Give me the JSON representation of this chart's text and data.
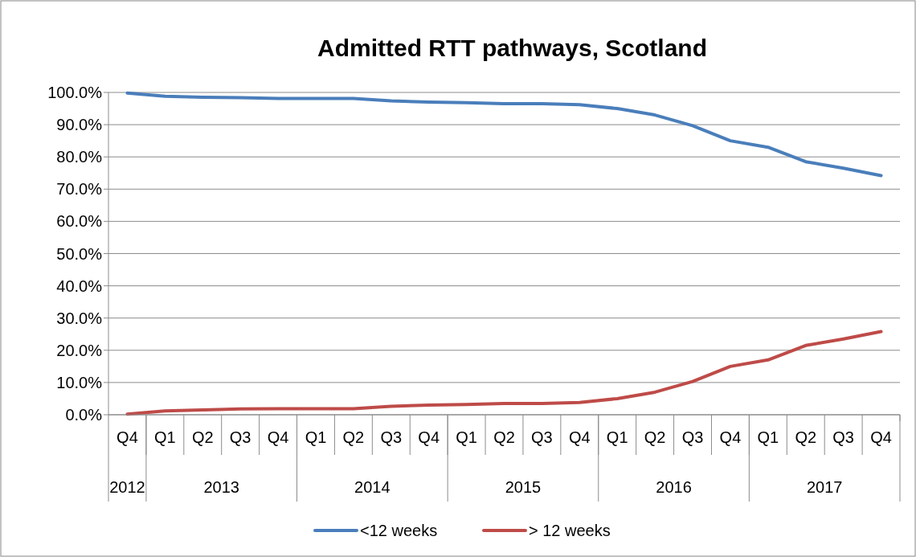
{
  "chart_data": {
    "type": "line",
    "title": "Admitted RTT pathways, Scotland",
    "categories": [
      "Q4",
      "Q1",
      "Q2",
      "Q3",
      "Q4",
      "Q1",
      "Q2",
      "Q3",
      "Q4",
      "Q1",
      "Q2",
      "Q3",
      "Q4",
      "Q1",
      "Q2",
      "Q3",
      "Q4",
      "Q1",
      "Q2",
      "Q3",
      "Q4"
    ],
    "series": [
      {
        "name": "<12 weeks",
        "color": "#4a7ebb",
        "values": [
          99.8,
          98.8,
          98.5,
          98.4,
          98.1,
          98.1,
          98.1,
          97.4,
          97.0,
          96.8,
          96.5,
          96.5,
          96.2,
          95.0,
          93.0,
          89.7,
          85.0,
          83.0,
          78.5,
          76.5,
          74.2
        ]
      },
      {
        "name": "> 12 weeks",
        "color": "#be4b48",
        "values": [
          0.2,
          1.2,
          1.5,
          1.8,
          1.9,
          1.9,
          1.9,
          2.6,
          3.0,
          3.2,
          3.5,
          3.5,
          3.8,
          5.0,
          7.0,
          10.3,
          15.0,
          17.0,
          21.5,
          23.5,
          25.8
        ]
      }
    ],
    "annotations": [
      "2012",
      "2013",
      "2014",
      "2015",
      "2016",
      "2017"
    ],
    "ylim": [
      0,
      100
    ],
    "yticks": [
      {
        "value": 0,
        "label": "0.0%"
      },
      {
        "value": 10,
        "label": "10.0%"
      },
      {
        "value": 20,
        "label": "20.0%"
      },
      {
        "value": 30,
        "label": "30.0%"
      },
      {
        "value": 40,
        "label": "40.0%"
      },
      {
        "value": 50,
        "label": "50.0%"
      },
      {
        "value": 60,
        "label": "60.0%"
      },
      {
        "value": 70,
        "label": "70.0%"
      },
      {
        "value": 80,
        "label": "80.0%"
      },
      {
        "value": 90,
        "label": "90.0%"
      },
      {
        "value": 100,
        "label": "100.0%"
      }
    ],
    "grid": "y",
    "legend": "bottom",
    "marker": "none",
    "line_style": "solid"
  }
}
